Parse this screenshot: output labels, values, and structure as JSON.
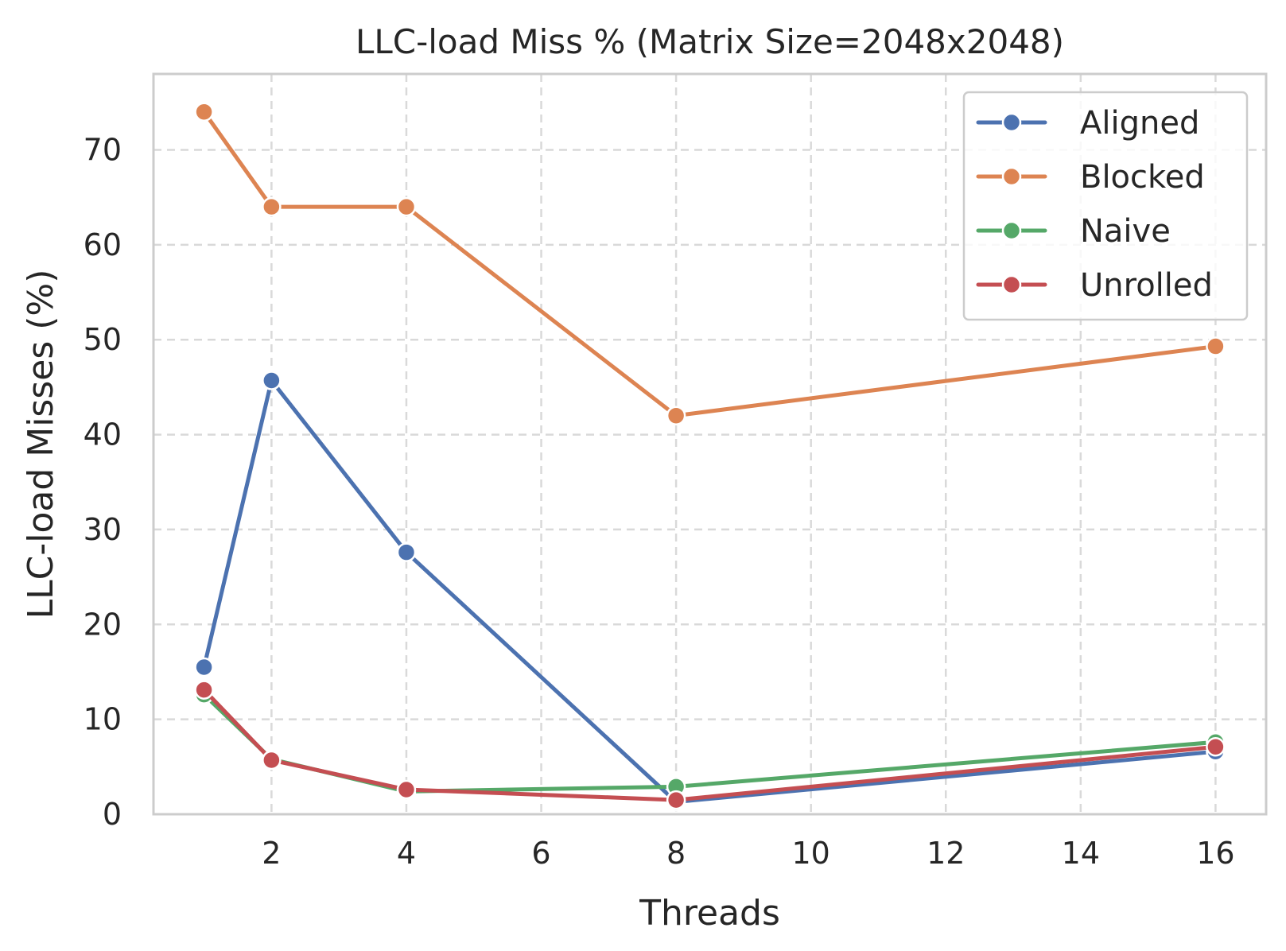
{
  "chart_data": {
    "type": "line",
    "title": "LLC-load Miss % (Matrix Size=2048x2048)",
    "xlabel": "Threads",
    "ylabel": "LLC-load Misses (%)",
    "x": [
      1,
      2,
      4,
      8,
      16
    ],
    "xlim": [
      0.25,
      16.75
    ],
    "ylim": [
      0,
      78
    ],
    "xticks": [
      2,
      4,
      6,
      8,
      10,
      12,
      14,
      16
    ],
    "yticks": [
      0,
      10,
      20,
      30,
      40,
      50,
      60,
      70
    ],
    "grid": true,
    "legend_position": "top-right",
    "series": [
      {
        "name": "Aligned",
        "color": "#4c72b0",
        "values": [
          15.5,
          45.7,
          27.6,
          1.3,
          6.6
        ]
      },
      {
        "name": "Blocked",
        "color": "#dd8452",
        "values": [
          74.0,
          64.0,
          64.0,
          42.0,
          49.3
        ]
      },
      {
        "name": "Naive",
        "color": "#55a868",
        "values": [
          12.6,
          5.8,
          2.4,
          2.9,
          7.6
        ]
      },
      {
        "name": "Unrolled",
        "color": "#c44e52",
        "values": [
          13.1,
          5.7,
          2.6,
          1.5,
          7.1
        ]
      }
    ]
  }
}
